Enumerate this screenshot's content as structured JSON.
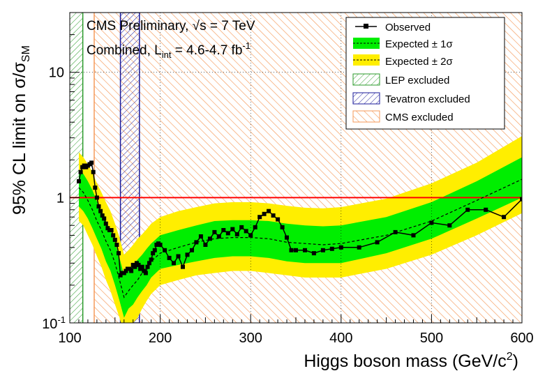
{
  "chart_data": {
    "type": "line",
    "header": {
      "line1_main": "CMS Preliminary, ",
      "line1_sqrt": "√",
      "line1_rest": "s = 7 TeV",
      "line2_main": "Combined, L",
      "line2_sub": "int",
      "line2_rest": " = 4.6-4.7 fb",
      "line2_sup": "-1"
    },
    "xlabel": {
      "main": "Higgs boson mass (GeV/c",
      "sup": "2",
      "close": ")"
    },
    "ylabel": {
      "main": "95% CL limit on σ/σ",
      "sub": "SM"
    },
    "xlim": [
      100,
      600
    ],
    "ylog": true,
    "ylim": [
      0.1,
      30
    ],
    "x_ticks": [
      {
        "v": 100,
        "label": "100"
      },
      {
        "v": 200,
        "label": "200"
      },
      {
        "v": 300,
        "label": "300"
      },
      {
        "v": 400,
        "label": "400"
      },
      {
        "v": 500,
        "label": "500"
      },
      {
        "v": 600,
        "label": "600"
      }
    ],
    "y_ticks": [
      {
        "v": 1,
        "label": "1"
      },
      {
        "v": 10,
        "label": "10"
      }
    ],
    "y_min_tick": {
      "base": "10",
      "exp": "-1"
    },
    "grid": true,
    "legend_position": "top-right",
    "legend": [
      {
        "key": "obs",
        "label": "Observed"
      },
      {
        "key": "exp1",
        "label": "Expected ± 1σ"
      },
      {
        "key": "exp2",
        "label": "Expected ± 2σ"
      },
      {
        "key": "lep",
        "label": "LEP excluded"
      },
      {
        "key": "tev",
        "label": "Tevatron excluded"
      },
      {
        "key": "cms",
        "label": "CMS excluded"
      }
    ],
    "colors": {
      "observed": "#000000",
      "band1": "#00ee00",
      "band2": "#ffee00",
      "lep": "#2a9a2a",
      "tevatron": "#1a1a9a",
      "cms": "#f59a5a",
      "sm_line": "#ff0000"
    },
    "sm_reference": 1,
    "regions": {
      "lep": [
        100,
        114.4
      ],
      "tevatron": [
        156,
        177
      ],
      "cms": [
        127,
        600
      ]
    },
    "series": [
      {
        "name": "Observed",
        "x": [
          110,
          112,
          114,
          116,
          118,
          120,
          122,
          124,
          126,
          128,
          130,
          132,
          134,
          136,
          138,
          140,
          142,
          144,
          146,
          148,
          150,
          152,
          154,
          156,
          158,
          160,
          162,
          164,
          166,
          168,
          170,
          172,
          174,
          176,
          178,
          180,
          182,
          184,
          186,
          188,
          190,
          192,
          194,
          196,
          198,
          200,
          205,
          210,
          215,
          220,
          225,
          230,
          235,
          240,
          245,
          250,
          255,
          260,
          265,
          270,
          275,
          280,
          285,
          290,
          295,
          300,
          305,
          310,
          315,
          320,
          325,
          330,
          335,
          340,
          345,
          350,
          360,
          370,
          380,
          390,
          400,
          420,
          440,
          460,
          480,
          500,
          520,
          540,
          560,
          580,
          600
        ],
        "y": [
          1.35,
          1.6,
          1.75,
          1.8,
          1.75,
          1.8,
          1.85,
          1.9,
          1.6,
          1.2,
          1.0,
          0.85,
          0.78,
          0.72,
          0.68,
          0.62,
          0.57,
          0.55,
          0.55,
          0.5,
          0.46,
          0.42,
          0.36,
          0.24,
          0.25,
          0.25,
          0.26,
          0.27,
          0.27,
          0.26,
          0.29,
          0.28,
          0.3,
          0.29,
          0.27,
          0.28,
          0.26,
          0.25,
          0.28,
          0.3,
          0.32,
          0.36,
          0.38,
          0.42,
          0.43,
          0.42,
          0.38,
          0.33,
          0.3,
          0.34,
          0.28,
          0.35,
          0.38,
          0.44,
          0.49,
          0.42,
          0.47,
          0.53,
          0.49,
          0.55,
          0.52,
          0.56,
          0.51,
          0.58,
          0.54,
          0.5,
          0.58,
          0.7,
          0.74,
          0.78,
          0.72,
          0.67,
          0.58,
          0.48,
          0.38,
          0.38,
          0.38,
          0.36,
          0.38,
          0.39,
          0.4,
          0.4,
          0.44,
          0.53,
          0.5,
          0.63,
          0.6,
          0.8,
          0.8,
          0.7,
          0.97
        ]
      },
      {
        "name": "Expected",
        "x": [
          110,
          115,
          120,
          125,
          130,
          135,
          140,
          145,
          150,
          155,
          160,
          165,
          170,
          175,
          180,
          185,
          190,
          200,
          220,
          240,
          260,
          280,
          300,
          320,
          340,
          360,
          380,
          400,
          450,
          500,
          550,
          600
        ],
        "y": [
          1.2,
          1.1,
          0.95,
          0.8,
          0.65,
          0.55,
          0.45,
          0.38,
          0.3,
          0.22,
          0.16,
          0.18,
          0.2,
          0.22,
          0.25,
          0.28,
          0.31,
          0.36,
          0.4,
          0.44,
          0.47,
          0.48,
          0.48,
          0.47,
          0.44,
          0.43,
          0.42,
          0.43,
          0.5,
          0.65,
          0.95,
          1.4
        ]
      }
    ],
    "bands": {
      "x": [
        110,
        115,
        120,
        125,
        130,
        135,
        140,
        145,
        150,
        155,
        160,
        165,
        170,
        175,
        180,
        185,
        190,
        200,
        220,
        240,
        260,
        280,
        300,
        320,
        340,
        360,
        380,
        400,
        450,
        500,
        550,
        600
      ],
      "minus2": [
        0.65,
        0.6,
        0.5,
        0.42,
        0.34,
        0.28,
        0.22,
        0.18,
        0.14,
        0.11,
        0.08,
        0.09,
        0.1,
        0.11,
        0.13,
        0.15,
        0.17,
        0.2,
        0.22,
        0.24,
        0.25,
        0.26,
        0.26,
        0.25,
        0.24,
        0.23,
        0.23,
        0.23,
        0.27,
        0.35,
        0.5,
        0.75
      ],
      "minus1": [
        0.85,
        0.78,
        0.68,
        0.57,
        0.47,
        0.39,
        0.31,
        0.26,
        0.2,
        0.15,
        0.11,
        0.13,
        0.14,
        0.16,
        0.18,
        0.2,
        0.23,
        0.27,
        0.29,
        0.31,
        0.33,
        0.34,
        0.34,
        0.33,
        0.31,
        0.3,
        0.3,
        0.3,
        0.36,
        0.47,
        0.68,
        1.0
      ],
      "plus1": [
        1.65,
        1.55,
        1.35,
        1.15,
        0.93,
        0.78,
        0.65,
        0.55,
        0.44,
        0.33,
        0.24,
        0.26,
        0.29,
        0.32,
        0.35,
        0.39,
        0.43,
        0.5,
        0.55,
        0.6,
        0.65,
        0.66,
        0.66,
        0.65,
        0.62,
        0.6,
        0.59,
        0.6,
        0.7,
        0.92,
        1.35,
        2.1
      ],
      "plus2": [
        2.3,
        2.1,
        1.85,
        1.6,
        1.3,
        1.1,
        0.92,
        0.78,
        0.62,
        0.48,
        0.35,
        0.38,
        0.42,
        0.47,
        0.51,
        0.56,
        0.62,
        0.7,
        0.78,
        0.84,
        0.9,
        0.92,
        0.92,
        0.9,
        0.86,
        0.83,
        0.82,
        0.84,
        0.98,
        1.3,
        1.9,
        3.1
      ]
    }
  }
}
